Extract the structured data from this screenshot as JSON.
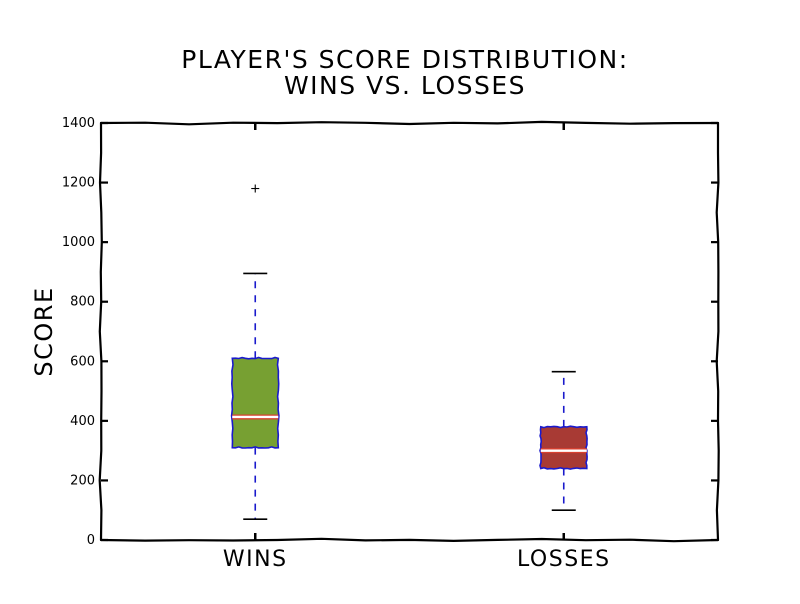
{
  "chart_data": {
    "type": "box",
    "title": "Player's Score Distribution:\nWins vs. Losses",
    "xlabel": "",
    "ylabel": "Score",
    "ylim": [
      0,
      1400
    ],
    "yticks": [
      0,
      200,
      400,
      600,
      800,
      1000,
      1200,
      1400
    ],
    "grid": false,
    "categories": [
      "Wins",
      "Losses"
    ],
    "series": [
      {
        "category": "Wins",
        "whisker_low": 70,
        "q1": 310,
        "median": 413,
        "q3": 610,
        "whisker_high": 895,
        "outliers": [
          1180
        ],
        "color": "#77a032"
      },
      {
        "category": "Losses",
        "whisker_low": 100,
        "q1": 240,
        "median": 300,
        "q3": 380,
        "whisker_high": 565,
        "outliers": [],
        "color": "#a83a34"
      }
    ],
    "colors": {
      "box_edge": "#1a1acc",
      "whisker": "#1a1acc",
      "median": "#ffffff",
      "median_outline": "#d84030",
      "axis": "#000000"
    }
  }
}
